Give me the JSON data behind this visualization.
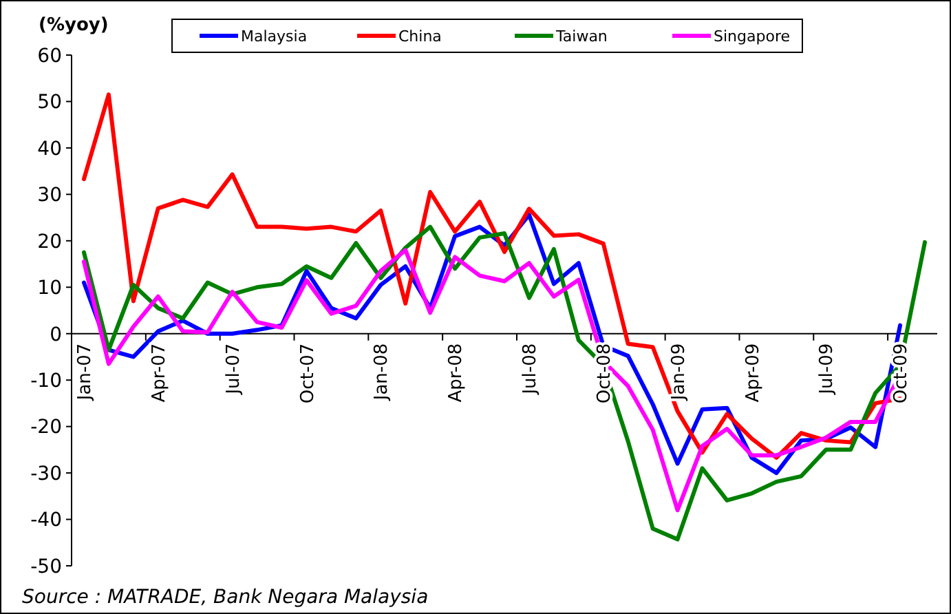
{
  "chart_data": {
    "type": "line",
    "ylabel": "(%yoy)",
    "categories": [
      "Jan-07",
      null,
      null,
      "Apr-07",
      null,
      null,
      "Jul-07",
      null,
      null,
      "Oct-07",
      null,
      null,
      "Jan-08",
      null,
      null,
      "Apr-08",
      null,
      null,
      "Jul-08",
      null,
      null,
      "Oct-08",
      null,
      null,
      "Jan-09",
      null,
      null,
      "Apr-09",
      null,
      null,
      "Jul-09",
      null,
      null,
      "Oct-09",
      null
    ],
    "series": [
      {
        "name": "Malaysia",
        "color": "#0000ff",
        "values": [
          11,
          -3.5,
          -5,
          0.5,
          2.8,
          0,
          0,
          0.8,
          1.8,
          13.5,
          5.5,
          3.3,
          10.5,
          14.5,
          5.5,
          21,
          23,
          19,
          25.6,
          10.7,
          15.2,
          -2.6,
          -4.8,
          -15.2,
          -28,
          -16.3,
          -16,
          -26.7,
          -30,
          -23,
          -22.7,
          -20.2,
          -24.4,
          1.8,
          null
        ]
      },
      {
        "name": "China",
        "color": "#ff0000",
        "values": [
          33.3,
          51.5,
          7,
          27,
          28.8,
          27.3,
          34.3,
          23,
          23,
          22.6,
          23,
          22,
          26.5,
          6.5,
          30.5,
          22,
          28.4,
          17.6,
          26.9,
          21.1,
          21.4,
          19.4,
          -2.2,
          -2.9,
          -16.7,
          -25.6,
          -17.3,
          -22.6,
          -26.7,
          -21.4,
          -23,
          -23.4,
          -15,
          -14,
          null
        ]
      },
      {
        "name": "Taiwan",
        "color": "#008000",
        "values": [
          17.5,
          -3.5,
          10.5,
          5.5,
          3.3,
          11,
          8.5,
          10,
          10.7,
          14.5,
          12,
          19.5,
          12,
          18.5,
          23,
          14,
          20.7,
          21.6,
          7.7,
          18.2,
          -1.4,
          -6.8,
          -23.2,
          -42,
          -44.3,
          -29,
          -35.9,
          -34.4,
          -31.9,
          -30.7,
          -25,
          -25,
          -12.8,
          -6.8,
          19.7
        ]
      },
      {
        "name": "Singapore",
        "color": "#ff00ff",
        "values": [
          15.5,
          -6.5,
          1.5,
          8,
          0.5,
          0.3,
          9,
          2.5,
          1.3,
          11.5,
          4.3,
          6,
          13.5,
          18,
          4.5,
          16.5,
          12.5,
          11.3,
          15.2,
          8,
          11.6,
          -5.9,
          -11.3,
          -20.7,
          -38,
          -24.2,
          -20.5,
          -26.2,
          -26.2,
          -24.4,
          -22.4,
          -19,
          -19,
          -8.8,
          null
        ]
      }
    ],
    "ylim": [
      -50,
      60
    ],
    "yticks": [
      -50,
      -40,
      -30,
      -20,
      -10,
      0,
      10,
      20,
      30,
      40,
      50,
      60
    ],
    "legend": "top",
    "grid": false,
    "marker": "none",
    "line_style": "solid",
    "annotations": [
      "Source : MATRADE, Bank Negara Malaysia"
    ]
  }
}
